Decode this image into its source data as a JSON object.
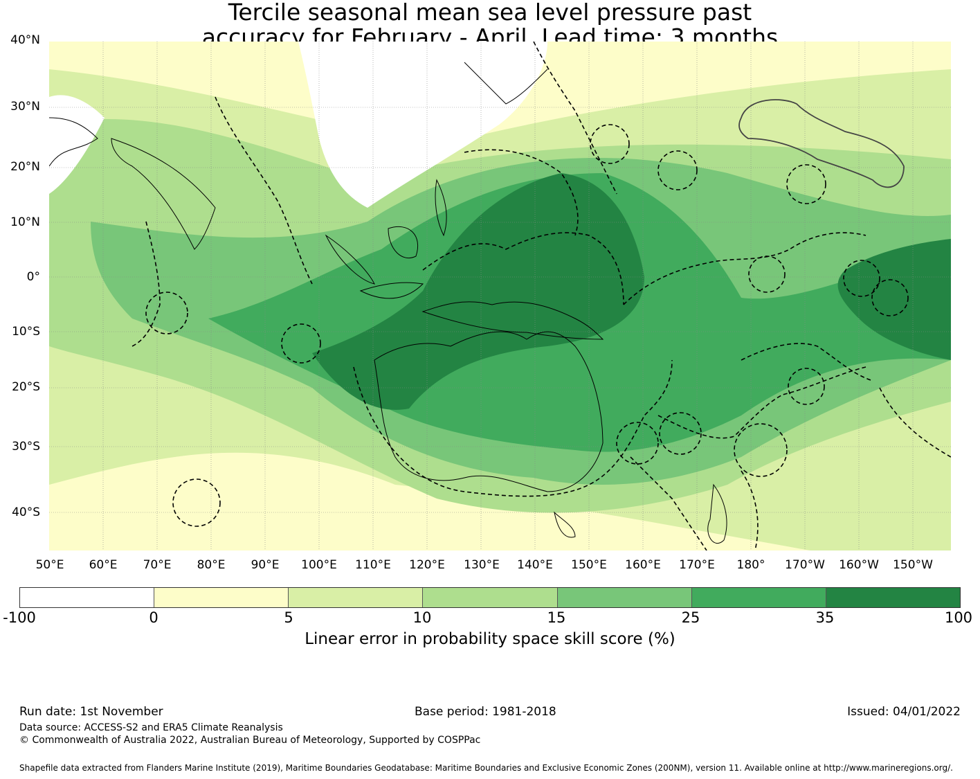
{
  "title_line1": "Tercile seasonal mean sea level pressure past",
  "title_line2": "accuracy for February - April. Lead time: 3 months",
  "lat_labels": [
    "40°N",
    "30°N",
    "20°N",
    "10°N",
    "0°",
    "10°S",
    "20°S",
    "30°S",
    "40°S"
  ],
  "lon_labels": [
    "50°E",
    "60°E",
    "70°E",
    "80°E",
    "90°E",
    "100°E",
    "110°E",
    "120°E",
    "130°E",
    "140°E",
    "150°E",
    "160°E",
    "170°E",
    "180°",
    "170°W",
    "160°W",
    "150°W"
  ],
  "colorbar": {
    "title": "Linear error in probability space skill score (%)",
    "ticks": [
      "-100",
      "0",
      "5",
      "10",
      "15",
      "25",
      "35",
      "100"
    ],
    "colors": [
      "#ffffff",
      "#fdfdc9",
      "#d9efa6",
      "#aede8e",
      "#78c679",
      "#41ab5d",
      "#238443"
    ]
  },
  "footer": {
    "run_date": "Run date: 1st November",
    "base_period": "Base period: 1981-2018",
    "issued": "Issued: 04/01/2022",
    "data_source": "Data source: ACCESS-S2 and ERA5 Climate Reanalysis",
    "copyright": "© Commonwealth of Australia 2022, Australian Bureau of Meteorology, Supported by COSPPac",
    "shapefile": "Shapefile data extracted from Flanders Marine Institute (2019), Maritime Boundaries Geodatabase: Maritime Boundaries and Exclusive Economic Zones (200NM), version 11. Available online at http://www.marineregions.org/."
  }
}
